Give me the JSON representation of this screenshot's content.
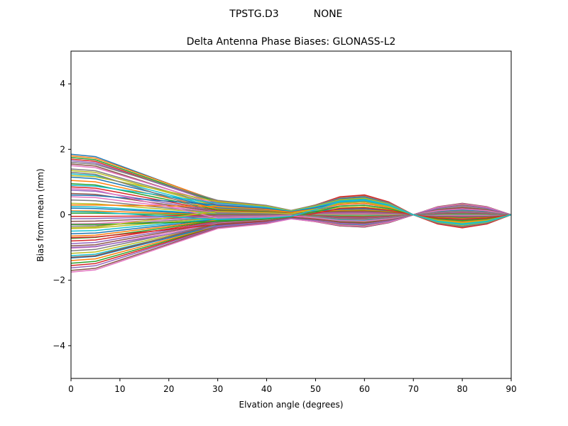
{
  "figure": {
    "suptitle_left": "TPSTG.D3",
    "suptitle_right": "NONE"
  },
  "chart_data": {
    "type": "line",
    "title": "Delta Antenna Phase Biases: GLONASS-L2",
    "suptitle": "TPSTG.D3        NONE",
    "xlabel": "Elvation angle (degrees)",
    "ylabel": "Bias from mean (mm)",
    "xlim": [
      0,
      90
    ],
    "ylim": [
      -5,
      5
    ],
    "xticks": [
      0,
      10,
      20,
      30,
      40,
      50,
      60,
      70,
      80,
      90
    ],
    "yticks": [
      -4,
      -2,
      0,
      2,
      4
    ],
    "ytick_labels": [
      "−4",
      "−2",
      "0",
      "2",
      "4"
    ],
    "grid": false,
    "legend": "none",
    "x": [
      0,
      5,
      10,
      15,
      20,
      25,
      30,
      35,
      40,
      45,
      50,
      55,
      60,
      65,
      70,
      75,
      80,
      85,
      90
    ],
    "series_colors": [
      "#1f77b4",
      "#ff7f0e",
      "#2ca02c",
      "#d62728",
      "#9467bd",
      "#8c564b",
      "#e377c2",
      "#7f7f7f",
      "#bcbd22",
      "#17becf"
    ],
    "series_note": "~60 overlapping series; each defined by start bias at 0 deg, value at 30 deg, and mid/high-elevation oscillation amplitudes (a60 at 60 deg, a80 at 80 deg); all converge to 0 at 90 deg",
    "series_params": [
      [
        1.85,
        0.4,
        0.55,
        -0.35
      ],
      [
        1.8,
        0.42,
        0.6,
        -0.38
      ],
      [
        1.75,
        0.38,
        0.5,
        -0.3
      ],
      [
        1.7,
        0.35,
        0.62,
        -0.4
      ],
      [
        1.65,
        0.36,
        0.45,
        -0.28
      ],
      [
        1.55,
        0.3,
        0.4,
        -0.25
      ],
      [
        1.5,
        0.32,
        0.35,
        -0.22
      ],
      [
        1.4,
        0.28,
        0.3,
        -0.2
      ],
      [
        1.35,
        0.25,
        0.25,
        -0.18
      ],
      [
        1.25,
        0.22,
        0.2,
        -0.15
      ],
      [
        1.15,
        0.2,
        0.18,
        -0.12
      ],
      [
        1.05,
        0.18,
        0.15,
        -0.1
      ],
      [
        0.95,
        0.15,
        0.12,
        -0.08
      ],
      [
        0.85,
        0.12,
        0.1,
        -0.06
      ],
      [
        0.75,
        0.1,
        0.08,
        -0.05
      ],
      [
        0.65,
        0.08,
        0.05,
        -0.03
      ],
      [
        0.55,
        0.06,
        0.03,
        -0.02
      ],
      [
        0.45,
        0.05,
        0.0,
        0.0
      ],
      [
        0.35,
        0.04,
        -0.02,
        0.02
      ],
      [
        0.25,
        0.02,
        -0.04,
        0.03
      ],
      [
        0.2,
        0.01,
        -0.05,
        0.04
      ],
      [
        0.12,
        0.0,
        -0.06,
        0.05
      ],
      [
        0.05,
        -0.01,
        -0.07,
        0.06
      ],
      [
        -0.05,
        -0.02,
        -0.08,
        0.07
      ],
      [
        -0.12,
        -0.03,
        -0.1,
        0.08
      ],
      [
        -0.2,
        -0.05,
        -0.12,
        0.1
      ],
      [
        -0.28,
        -0.06,
        -0.14,
        0.11
      ],
      [
        -0.35,
        -0.08,
        -0.15,
        0.12
      ],
      [
        -0.42,
        -0.1,
        -0.17,
        0.14
      ],
      [
        -0.5,
        -0.12,
        -0.18,
        0.15
      ],
      [
        -0.58,
        -0.14,
        -0.2,
        0.16
      ],
      [
        -0.65,
        -0.16,
        -0.22,
        0.18
      ],
      [
        -0.72,
        -0.18,
        -0.24,
        0.19
      ],
      [
        -0.8,
        -0.2,
        -0.25,
        0.2
      ],
      [
        -0.88,
        -0.22,
        -0.27,
        0.22
      ],
      [
        -0.95,
        -0.24,
        -0.28,
        0.23
      ],
      [
        -1.02,
        -0.26,
        -0.3,
        0.25
      ],
      [
        -1.1,
        -0.28,
        -0.31,
        0.26
      ],
      [
        -1.18,
        -0.3,
        -0.32,
        0.27
      ],
      [
        -1.25,
        -0.32,
        -0.33,
        0.28
      ],
      [
        -1.32,
        -0.33,
        -0.34,
        0.3
      ],
      [
        -1.4,
        -0.35,
        -0.35,
        0.31
      ],
      [
        -1.48,
        -0.36,
        -0.36,
        0.32
      ],
      [
        -1.55,
        -0.37,
        -0.37,
        0.33
      ],
      [
        -1.62,
        -0.38,
        -0.38,
        0.34
      ],
      [
        -1.7,
        -0.4,
        -0.38,
        0.35
      ],
      [
        -1.75,
        -0.42,
        -0.36,
        0.33
      ],
      [
        1.6,
        0.44,
        0.58,
        -0.36
      ],
      [
        1.2,
        0.4,
        0.52,
        -0.32
      ],
      [
        0.9,
        0.35,
        0.48,
        -0.3
      ],
      [
        0.6,
        0.3,
        0.42,
        -0.26
      ],
      [
        0.3,
        0.25,
        0.36,
        -0.22
      ],
      [
        -0.3,
        -0.2,
        0.3,
        -0.18
      ],
      [
        -0.7,
        -0.3,
        0.22,
        -0.14
      ],
      [
        -1.0,
        -0.35,
        -0.3,
        0.28
      ],
      [
        -1.3,
        -0.28,
        -0.25,
        0.22
      ],
      [
        0.8,
        -0.1,
        -0.2,
        0.18
      ],
      [
        1.3,
        0.05,
        -0.15,
        0.12
      ],
      [
        -0.4,
        0.1,
        0.4,
        -0.25
      ],
      [
        0.1,
        -0.15,
        0.45,
        -0.28
      ]
    ]
  }
}
